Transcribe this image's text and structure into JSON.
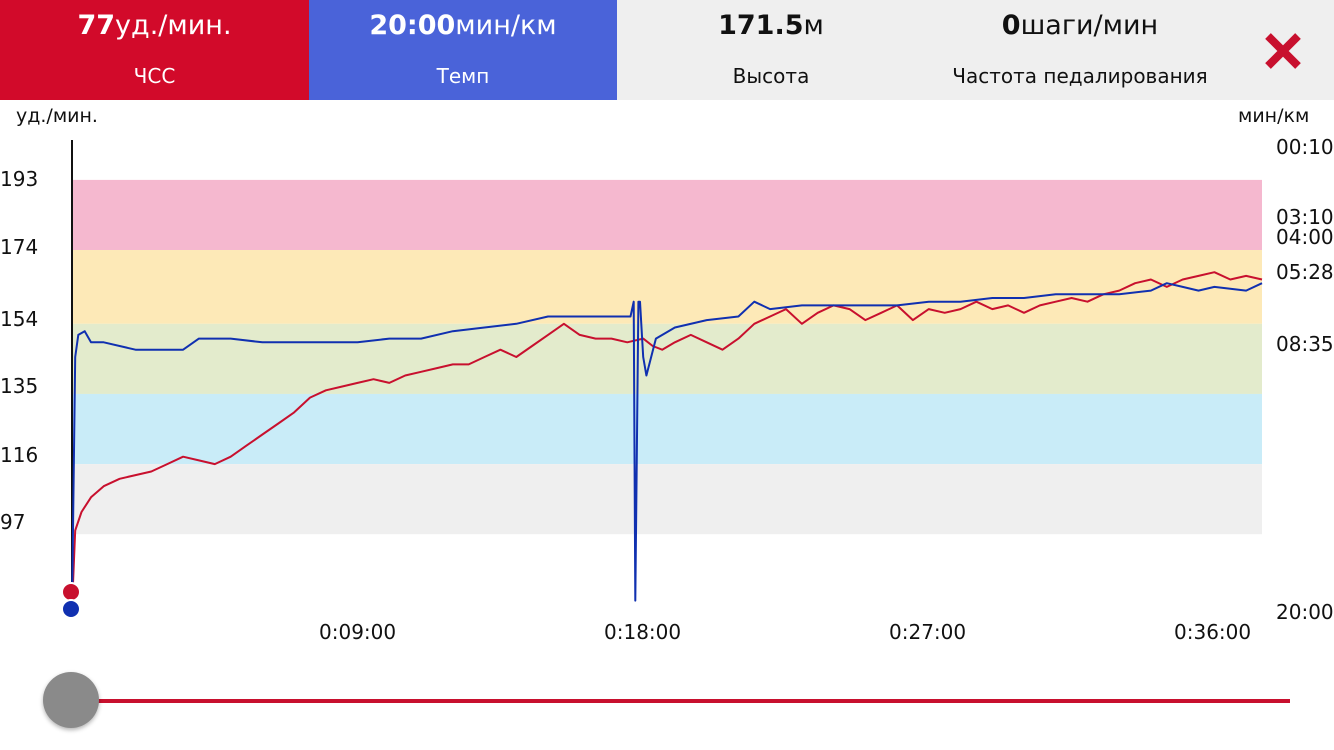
{
  "tabs": [
    {
      "value": "77",
      "unit": "уд./мин.",
      "label": "ЧСС"
    },
    {
      "value": "20:00",
      "unit": "мин/км",
      "label": "Темп"
    },
    {
      "value": "171.5",
      "unit": "м",
      "label": "Высота"
    },
    {
      "value": "0",
      "unit": "шаги/мин",
      "label": "Частота педалирования"
    }
  ],
  "close_icon": "close-x-icon",
  "colors": {
    "hr": "#d20a2a",
    "pace": "#4a63d9",
    "hr_line": "#c8102e",
    "pace_line": "#1030b0",
    "zone5": "#f5b8cf",
    "zone4": "#fde9b7",
    "zone3": "#e3ebcc",
    "zone2": "#c9ecf8",
    "zone1": "#efefef"
  },
  "chart_data": {
    "type": "line",
    "left_axis_unit": "уд./мин.",
    "right_axis_unit": "мин/км",
    "left_ticks": [
      "193",
      "174",
      "154",
      "135",
      "116",
      "97"
    ],
    "right_ticks": [
      "00:10",
      "03:10",
      "04:00",
      "05:28",
      "08:35",
      "20:00"
    ],
    "x_ticks": [
      "0:09:00",
      "0:18:00",
      "0:27:00",
      "0:36:00"
    ],
    "hr_zones": [
      [
        174,
        193
      ],
      [
        154,
        174
      ],
      [
        135,
        154
      ],
      [
        116,
        135
      ],
      [
        97,
        116
      ]
    ],
    "ylim_hr": [
      77,
      203
    ],
    "xlim_minutes": [
      0,
      37.5
    ],
    "series": [
      {
        "axis": "hr",
        "x": [
          0,
          0.1,
          0.3,
          0.6,
          1.0,
          1.5,
          2,
          2.5,
          3,
          3.5,
          4,
          4.5,
          5,
          5.5,
          6,
          6.5,
          7,
          7.5,
          8,
          8.5,
          9,
          9.5,
          10,
          10.5,
          11,
          11.5,
          12,
          12.5,
          13,
          13.5,
          14,
          14.5,
          15,
          15.5,
          16,
          16.5,
          17,
          17.5,
          18,
          18.3,
          18.6,
          19,
          19.5,
          20,
          20.5,
          21,
          21.5,
          22,
          22.5,
          23,
          23.5,
          24,
          24.5,
          25,
          25.5,
          26,
          26.5,
          27,
          27.5,
          28,
          28.5,
          29,
          29.5,
          30,
          30.5,
          31,
          31.5,
          32,
          32.5,
          33,
          33.5,
          34,
          34.5,
          35,
          35.5,
          36,
          36.5,
          37,
          37.5
        ],
        "values": [
          77,
          98,
          103,
          107,
          110,
          112,
          113,
          114,
          116,
          118,
          117,
          116,
          118,
          121,
          124,
          127,
          130,
          134,
          136,
          137,
          138,
          139,
          138,
          140,
          141,
          142,
          143,
          143,
          145,
          147,
          145,
          148,
          151,
          154,
          151,
          150,
          150,
          149,
          150,
          148,
          147,
          149,
          151,
          149,
          147,
          150,
          154,
          156,
          158,
          154,
          157,
          159,
          158,
          155,
          157,
          159,
          155,
          158,
          157,
          158,
          160,
          158,
          159,
          157,
          159,
          160,
          161,
          160,
          162,
          163,
          165,
          166,
          164,
          166,
          167,
          168,
          166,
          167,
          166
        ]
      },
      {
        "axis": "pace",
        "x": [
          0,
          0.1,
          0.2,
          0.4,
          0.6,
          1,
          2,
          3,
          3.5,
          4,
          5,
          6,
          7,
          8,
          9,
          10,
          11,
          12,
          13,
          14,
          15,
          16,
          17,
          17.6,
          17.7,
          17.75,
          17.85,
          17.9,
          18.0,
          18.1,
          18.4,
          19,
          20,
          21,
          21.5,
          22,
          23,
          24,
          25,
          26,
          27,
          28,
          29,
          30,
          31,
          32,
          33,
          34,
          34.5,
          35,
          35.5,
          36,
          37,
          37.5
        ],
        "values": [
          77,
          145,
          151,
          152,
          149,
          149,
          147,
          147,
          147,
          150,
          150,
          149,
          149,
          149,
          149,
          150,
          150,
          152,
          153,
          154,
          156,
          156,
          156,
          156,
          160,
          79,
          160,
          160,
          145,
          140,
          150,
          153,
          155,
          156,
          160,
          158,
          159,
          159,
          159,
          159,
          160,
          160,
          161,
          161,
          162,
          162,
          162,
          163,
          165,
          164,
          163,
          164,
          163,
          165
        ]
      }
    ]
  }
}
